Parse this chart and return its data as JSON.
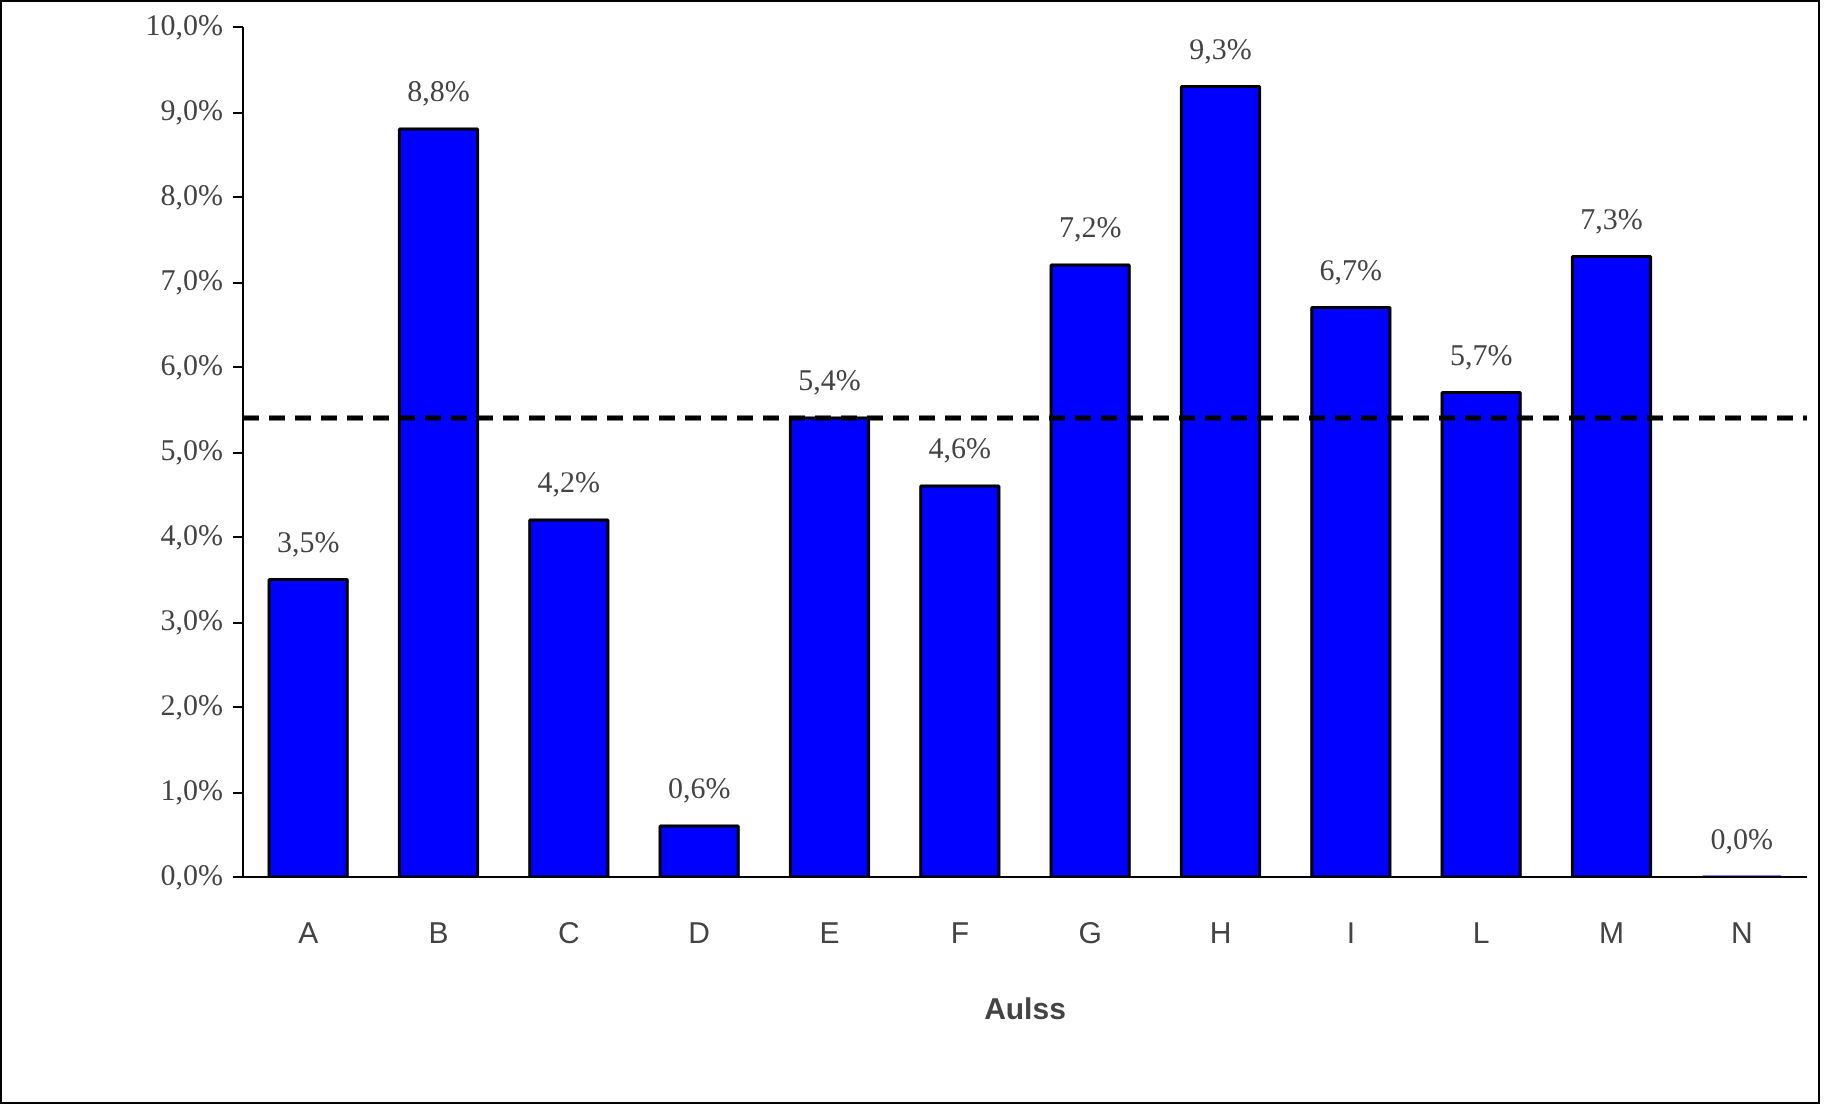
{
  "chart_data": {
    "type": "bar",
    "xlabel": "Aulss",
    "categories": [
      "A",
      "B",
      "C",
      "D",
      "E",
      "F",
      "G",
      "H",
      "I",
      "L",
      "M",
      "N"
    ],
    "values": [
      3.5,
      8.8,
      4.2,
      0.6,
      5.4,
      4.6,
      7.2,
      9.3,
      6.7,
      5.7,
      7.3,
      0.0
    ],
    "color": "#0000ff",
    "value_labels": [
      "3,5%",
      "8,8%",
      "4,2%",
      "0,6%",
      "5,4%",
      "4,6%",
      "7,2%",
      "9,3%",
      "6,7%",
      "5,7%",
      "7,3%",
      "0,0%"
    ],
    "ylim": [
      0,
      10
    ],
    "yticks": [
      {
        "value": 0,
        "label": "0,0%"
      },
      {
        "value": 1,
        "label": "1,0%"
      },
      {
        "value": 2,
        "label": "2,0%"
      },
      {
        "value": 3,
        "label": "3,0%"
      },
      {
        "value": 4,
        "label": "4,0%"
      },
      {
        "value": 5,
        "label": "5,0%"
      },
      {
        "value": 6,
        "label": "6,0%"
      },
      {
        "value": 7,
        "label": "7,0%"
      },
      {
        "value": 8,
        "label": "8,0%"
      },
      {
        "value": 9,
        "label": "9,0%"
      },
      {
        "value": 10,
        "label": "10,0%"
      }
    ],
    "ref_lines": [
      {
        "axis": "y",
        "value": 5.4,
        "color": "#000000",
        "line_style": "dashed"
      }
    ],
    "grid": false
  }
}
